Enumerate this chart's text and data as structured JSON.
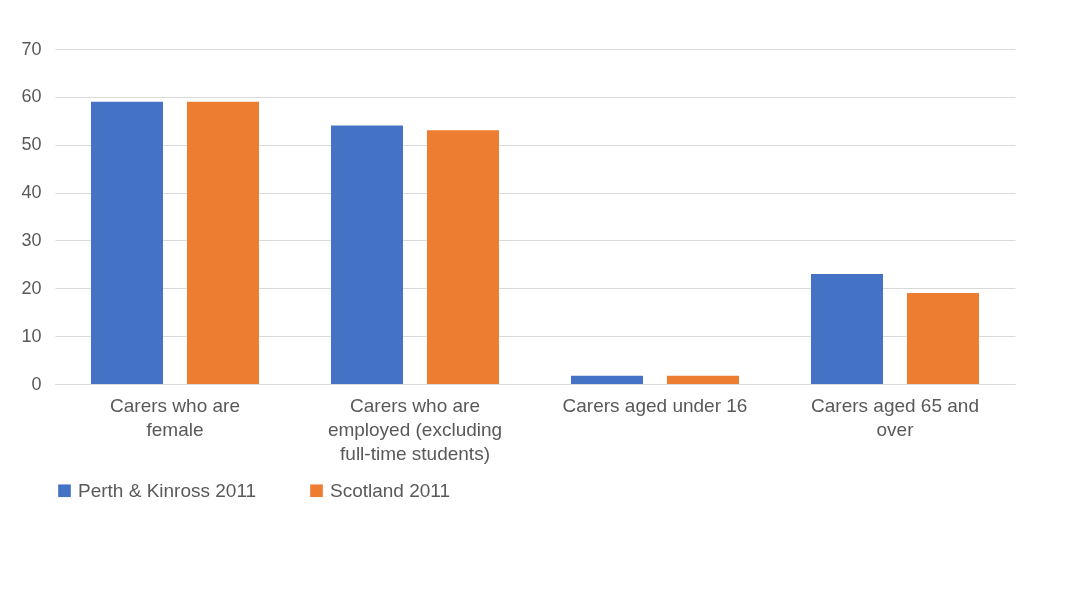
{
  "chart_data": {
    "type": "bar",
    "categories": [
      "Carers who are female",
      "Carers who are employed (excluding full-time students)",
      "Carers aged under 16",
      "Carers aged 65 and over"
    ],
    "series": [
      {
        "name": "Perth & Kinross 2011",
        "color": "#4472c4",
        "values": [
          59,
          54,
          1.7,
          23
        ]
      },
      {
        "name": "Scotland 2011",
        "color": "#ed7d31",
        "values": [
          59,
          53,
          1.7,
          19
        ]
      }
    ],
    "ylim": [
      0,
      70
    ],
    "yticks": [
      0,
      10,
      20,
      30,
      40,
      50,
      60,
      70
    ],
    "grid": "y",
    "legend": "bottom"
  }
}
